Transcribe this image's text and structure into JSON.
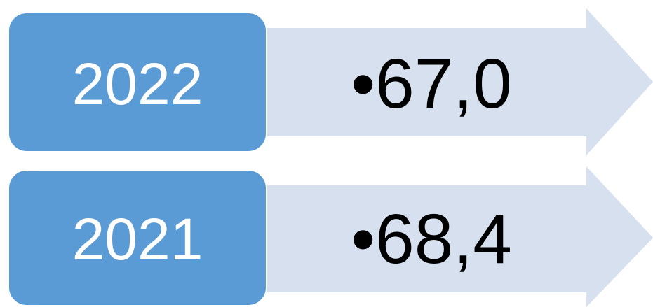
{
  "items": [
    {
      "label": "2022",
      "value": "•67,0"
    },
    {
      "label": "2021",
      "value": "•68,4"
    }
  ]
}
